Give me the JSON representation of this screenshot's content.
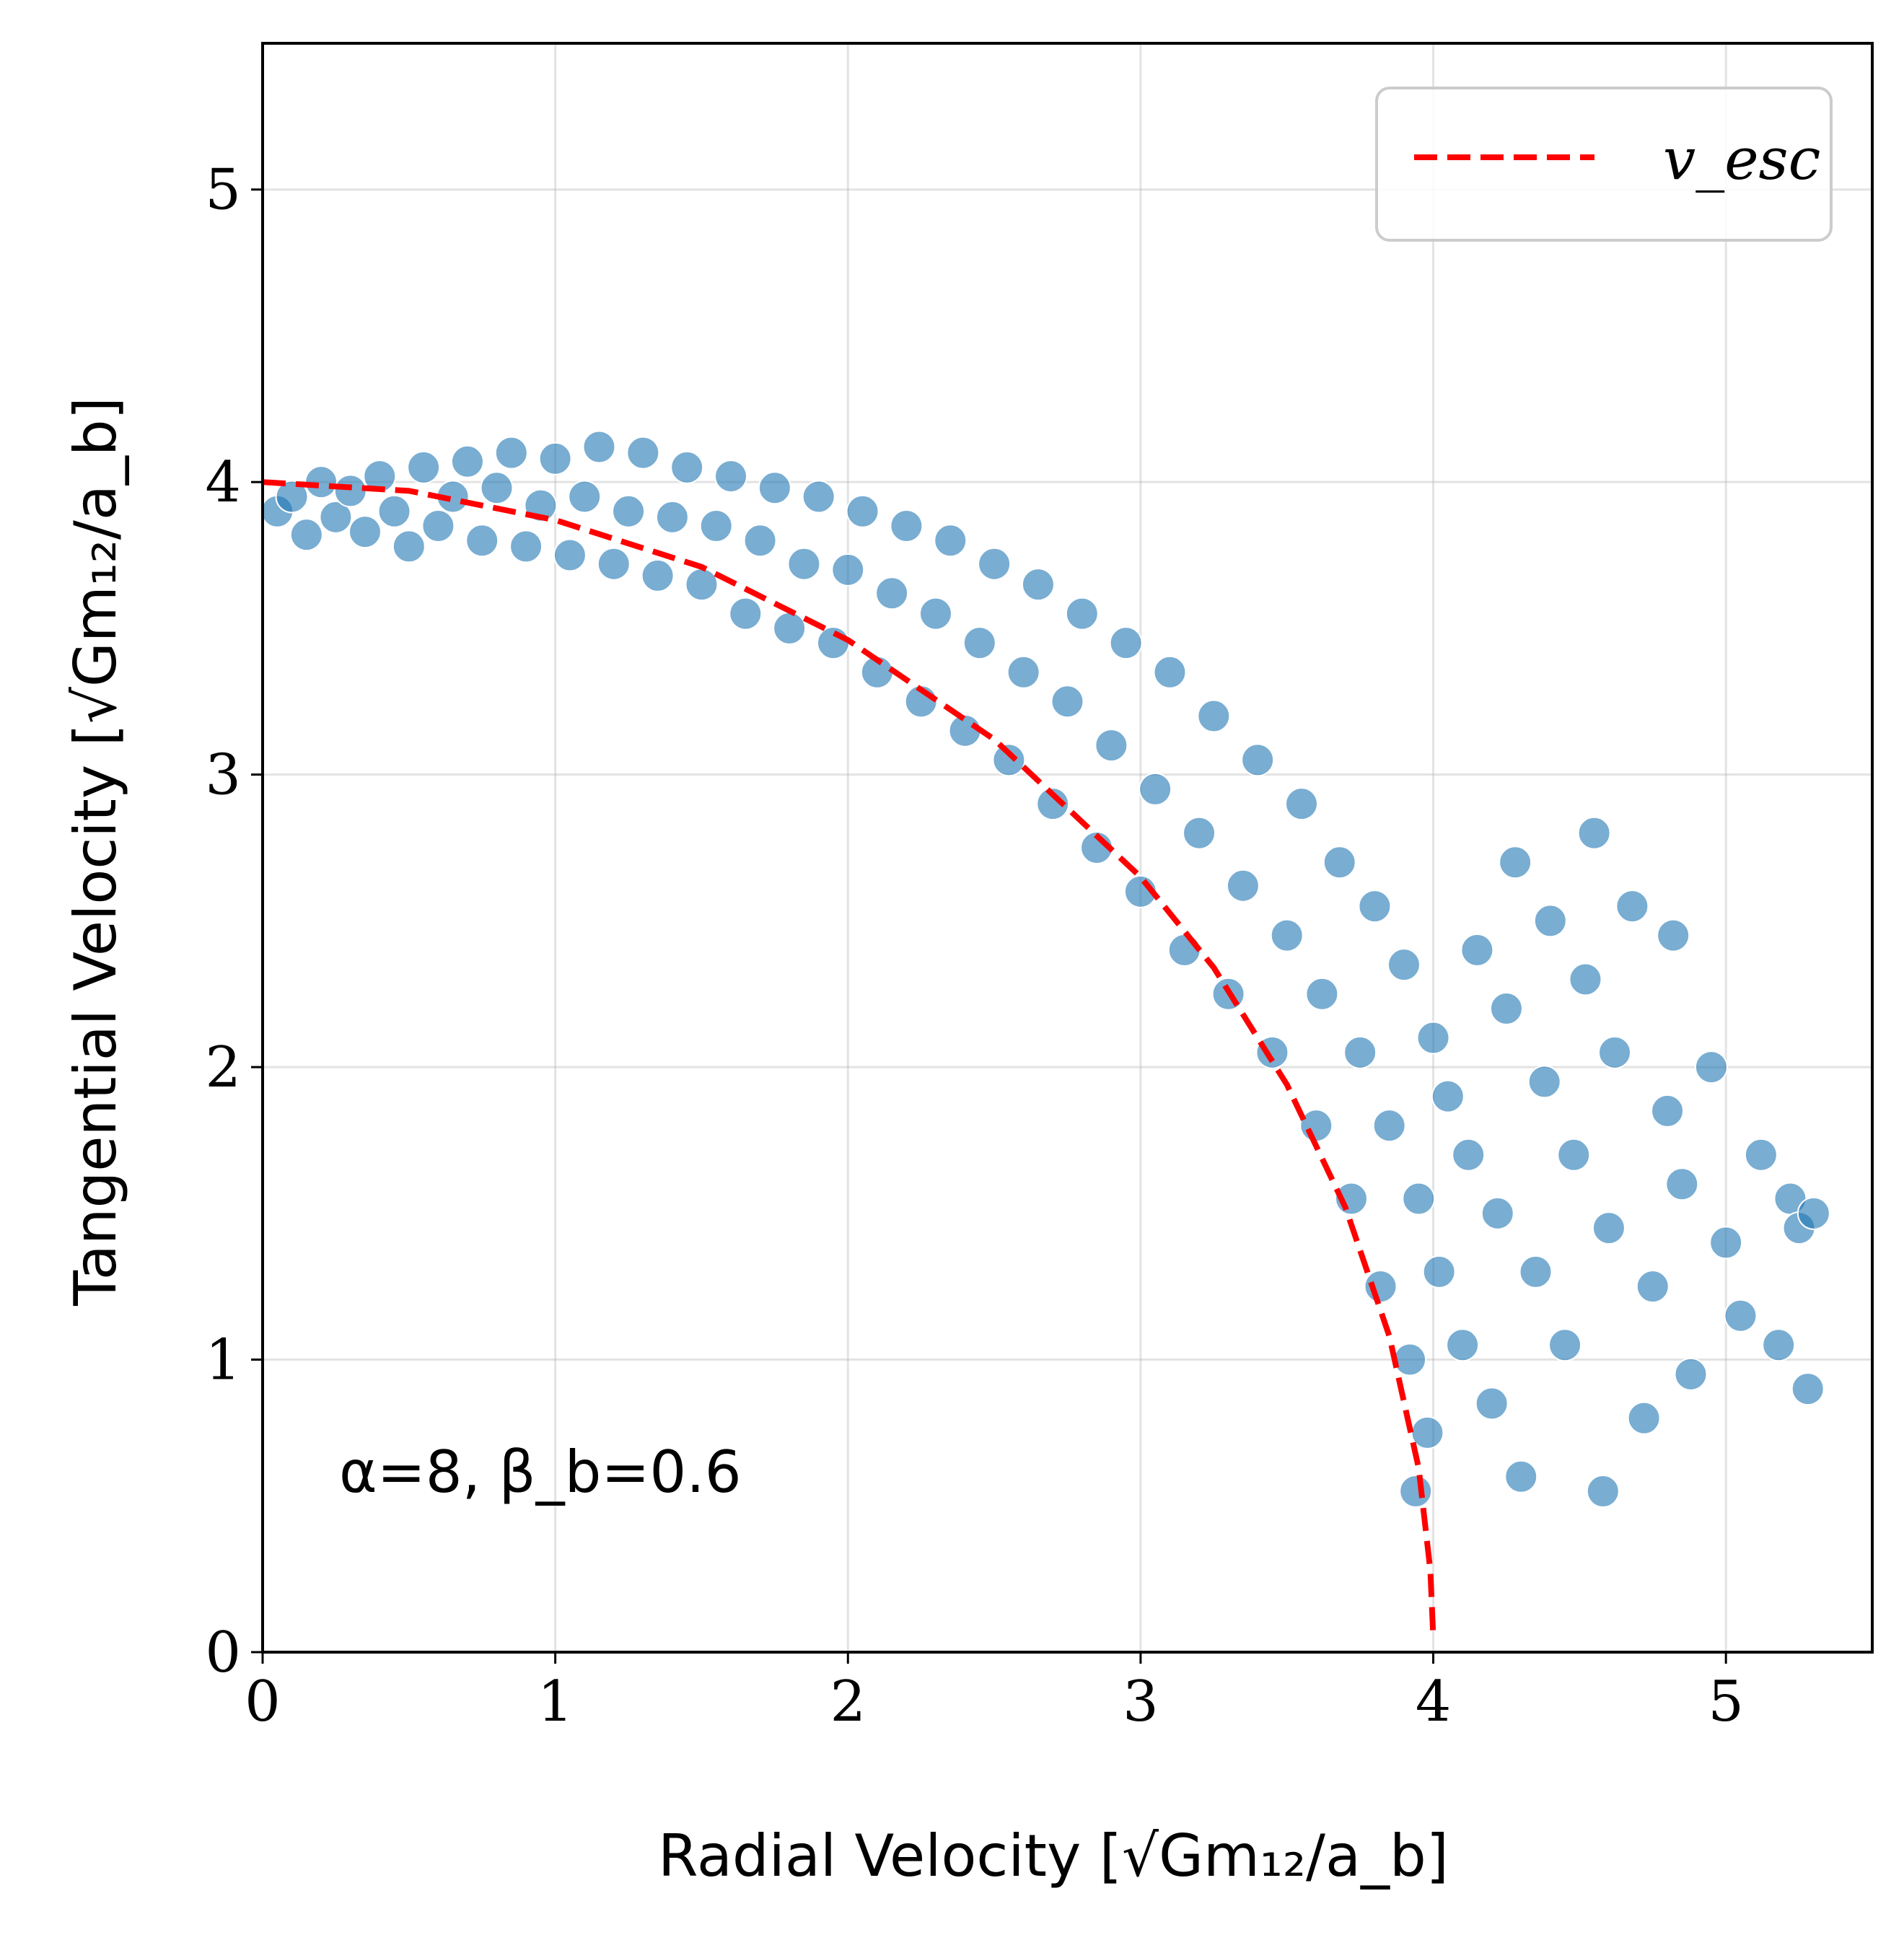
{
  "chart_data": {
    "type": "scatter",
    "xlabel": "Radial Velocity [√Gm₁₂/a_b]",
    "ylabel": "Tangential Velocity [√Gm₁₂/a_b]",
    "xlim": [
      0,
      5.5
    ],
    "ylim": [
      0,
      5.5
    ],
    "xticks": [
      0,
      1,
      2,
      3,
      4,
      5
    ],
    "yticks": [
      0,
      1,
      2,
      3,
      4,
      5
    ],
    "grid": true,
    "legend_position": "top-right",
    "annotation": "α=8, β_b=0.6",
    "colors": {
      "points": "#1f77b4",
      "escape_curve": "#ff0000"
    },
    "series": [
      {
        "name": "",
        "kind": "scatter",
        "points": [
          [
            0.05,
            3.9
          ],
          [
            0.1,
            3.95
          ],
          [
            0.15,
            3.82
          ],
          [
            0.2,
            4.0
          ],
          [
            0.25,
            3.88
          ],
          [
            0.3,
            3.97
          ],
          [
            0.35,
            3.83
          ],
          [
            0.4,
            4.02
          ],
          [
            0.45,
            3.9
          ],
          [
            0.5,
            3.78
          ],
          [
            0.55,
            4.05
          ],
          [
            0.6,
            3.85
          ],
          [
            0.65,
            3.95
          ],
          [
            0.7,
            4.07
          ],
          [
            0.75,
            3.8
          ],
          [
            0.8,
            3.98
          ],
          [
            0.85,
            4.1
          ],
          [
            0.9,
            3.78
          ],
          [
            0.95,
            3.92
          ],
          [
            1.0,
            4.08
          ],
          [
            1.05,
            3.75
          ],
          [
            1.1,
            3.95
          ],
          [
            1.15,
            4.12
          ],
          [
            1.2,
            3.72
          ],
          [
            1.25,
            3.9
          ],
          [
            1.3,
            4.1
          ],
          [
            1.35,
            3.68
          ],
          [
            1.4,
            3.88
          ],
          [
            1.45,
            4.05
          ],
          [
            1.5,
            3.65
          ],
          [
            1.55,
            3.85
          ],
          [
            1.6,
            4.02
          ],
          [
            1.65,
            3.55
          ],
          [
            1.7,
            3.8
          ],
          [
            1.75,
            3.98
          ],
          [
            1.8,
            3.5
          ],
          [
            1.85,
            3.72
          ],
          [
            1.9,
            3.95
          ],
          [
            1.95,
            3.45
          ],
          [
            2.0,
            3.7
          ],
          [
            2.05,
            3.9
          ],
          [
            2.1,
            3.35
          ],
          [
            2.15,
            3.62
          ],
          [
            2.2,
            3.85
          ],
          [
            2.25,
            3.25
          ],
          [
            2.3,
            3.55
          ],
          [
            2.35,
            3.8
          ],
          [
            2.4,
            3.15
          ],
          [
            2.45,
            3.45
          ],
          [
            2.5,
            3.72
          ],
          [
            2.55,
            3.05
          ],
          [
            2.6,
            3.35
          ],
          [
            2.65,
            3.65
          ],
          [
            2.7,
            2.9
          ],
          [
            2.75,
            3.25
          ],
          [
            2.8,
            3.55
          ],
          [
            2.85,
            2.75
          ],
          [
            2.9,
            3.1
          ],
          [
            2.95,
            3.45
          ],
          [
            3.0,
            2.6
          ],
          [
            3.05,
            2.95
          ],
          [
            3.1,
            3.35
          ],
          [
            3.15,
            2.4
          ],
          [
            3.2,
            2.8
          ],
          [
            3.25,
            3.2
          ],
          [
            3.3,
            2.25
          ],
          [
            3.35,
            2.62
          ],
          [
            3.4,
            3.05
          ],
          [
            3.45,
            2.05
          ],
          [
            3.5,
            2.45
          ],
          [
            3.55,
            2.9
          ],
          [
            3.6,
            1.8
          ],
          [
            3.62,
            2.25
          ],
          [
            3.68,
            2.7
          ],
          [
            3.72,
            1.55
          ],
          [
            3.75,
            2.05
          ],
          [
            3.8,
            2.55
          ],
          [
            3.82,
            1.25
          ],
          [
            3.85,
            1.8
          ],
          [
            3.9,
            2.35
          ],
          [
            3.92,
            1.0
          ],
          [
            3.95,
            1.55
          ],
          [
            4.0,
            2.1
          ],
          [
            3.98,
            0.75
          ],
          [
            4.02,
            1.3
          ],
          [
            4.05,
            1.9
          ],
          [
            3.94,
            0.55
          ],
          [
            4.1,
            1.05
          ],
          [
            4.12,
            1.7
          ],
          [
            4.15,
            2.4
          ],
          [
            4.2,
            0.85
          ],
          [
            4.22,
            1.5
          ],
          [
            4.25,
            2.2
          ],
          [
            4.28,
            2.7
          ],
          [
            4.3,
            0.6
          ],
          [
            4.35,
            1.3
          ],
          [
            4.38,
            1.95
          ],
          [
            4.4,
            2.5
          ],
          [
            4.45,
            1.05
          ],
          [
            4.48,
            1.7
          ],
          [
            4.52,
            2.3
          ],
          [
            4.55,
            2.8
          ],
          [
            4.58,
            0.55
          ],
          [
            4.6,
            1.45
          ],
          [
            4.62,
            2.05
          ],
          [
            4.68,
            2.55
          ],
          [
            4.72,
            0.8
          ],
          [
            4.75,
            1.25
          ],
          [
            4.8,
            1.85
          ],
          [
            4.82,
            2.45
          ],
          [
            4.85,
            1.6
          ],
          [
            4.88,
            0.95
          ],
          [
            4.95,
            2.0
          ],
          [
            5.0,
            1.4
          ],
          [
            5.05,
            1.15
          ],
          [
            5.12,
            1.7
          ],
          [
            5.18,
            1.05
          ],
          [
            5.22,
            1.55
          ],
          [
            5.25,
            1.45
          ],
          [
            5.28,
            0.9
          ],
          [
            5.3,
            1.5
          ]
        ]
      },
      {
        "name": "v_esc",
        "kind": "line",
        "style": "dashed",
        "points": [
          [
            0.0,
            4.0
          ],
          [
            0.5,
            3.97
          ],
          [
            1.0,
            3.87
          ],
          [
            1.5,
            3.71
          ],
          [
            2.0,
            3.46
          ],
          [
            2.5,
            3.12
          ],
          [
            3.0,
            2.65
          ],
          [
            3.25,
            2.34
          ],
          [
            3.5,
            1.94
          ],
          [
            3.7,
            1.52
          ],
          [
            3.85,
            1.08
          ],
          [
            3.95,
            0.63
          ],
          [
            3.99,
            0.28
          ],
          [
            4.0,
            0.05
          ]
        ]
      }
    ]
  }
}
